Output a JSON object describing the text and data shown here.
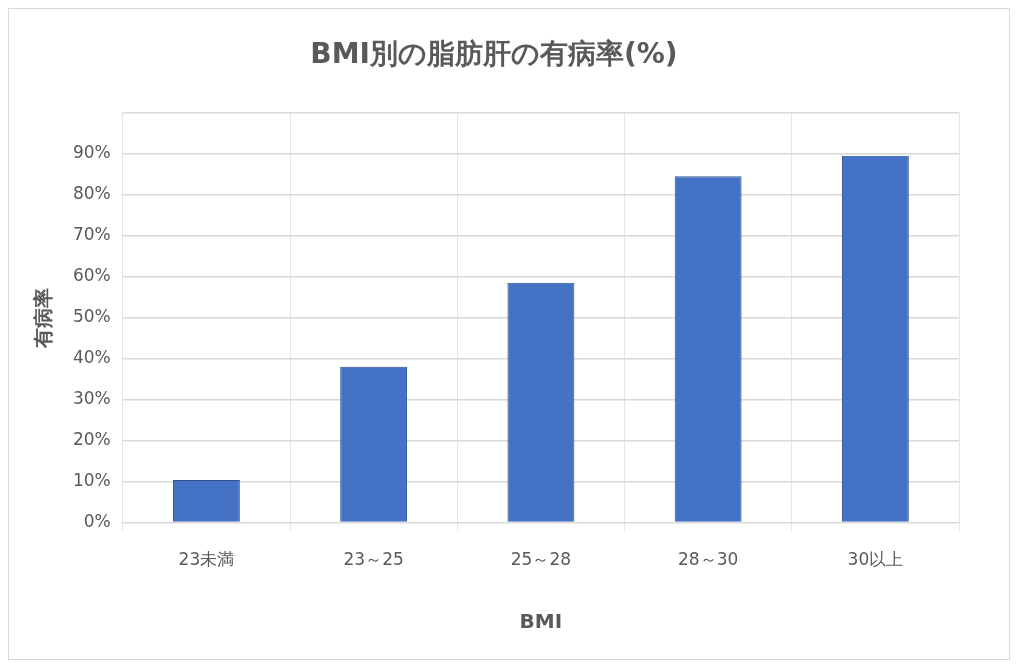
{
  "chart_data": {
    "type": "bar",
    "title": "BMI別の脂肪肝の有病率(%)",
    "xlabel": "BMI",
    "ylabel": "有病率",
    "categories": [
      "23未満",
      "23～25",
      "25～28",
      "28～30",
      "30以上"
    ],
    "values": [
      10.4,
      38,
      58.5,
      84.5,
      89.5
    ],
    "color": "#4472c4",
    "ylim": [
      0,
      100
    ],
    "yticks": [
      {
        "value": 0,
        "label": "0%"
      },
      {
        "value": 10,
        "label": "10%"
      },
      {
        "value": 20,
        "label": "20%"
      },
      {
        "value": 30,
        "label": "30%"
      },
      {
        "value": 40,
        "label": "40%"
      },
      {
        "value": 50,
        "label": "50%"
      },
      {
        "value": 60,
        "label": "60%"
      },
      {
        "value": 70,
        "label": "70%"
      },
      {
        "value": 80,
        "label": "80%"
      },
      {
        "value": 90,
        "label": "90%"
      },
      {
        "value": 100,
        "label": null
      }
    ],
    "grid": true
  }
}
